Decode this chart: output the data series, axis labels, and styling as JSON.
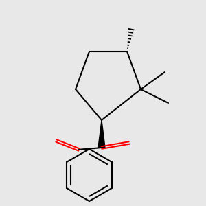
{
  "bg_color": "#e8e8e8",
  "bond_color": "#000000",
  "oxygen_color": "#ff0000",
  "lw": 1.5,
  "figsize": [
    3.0,
    3.0
  ],
  "dpi": 100
}
